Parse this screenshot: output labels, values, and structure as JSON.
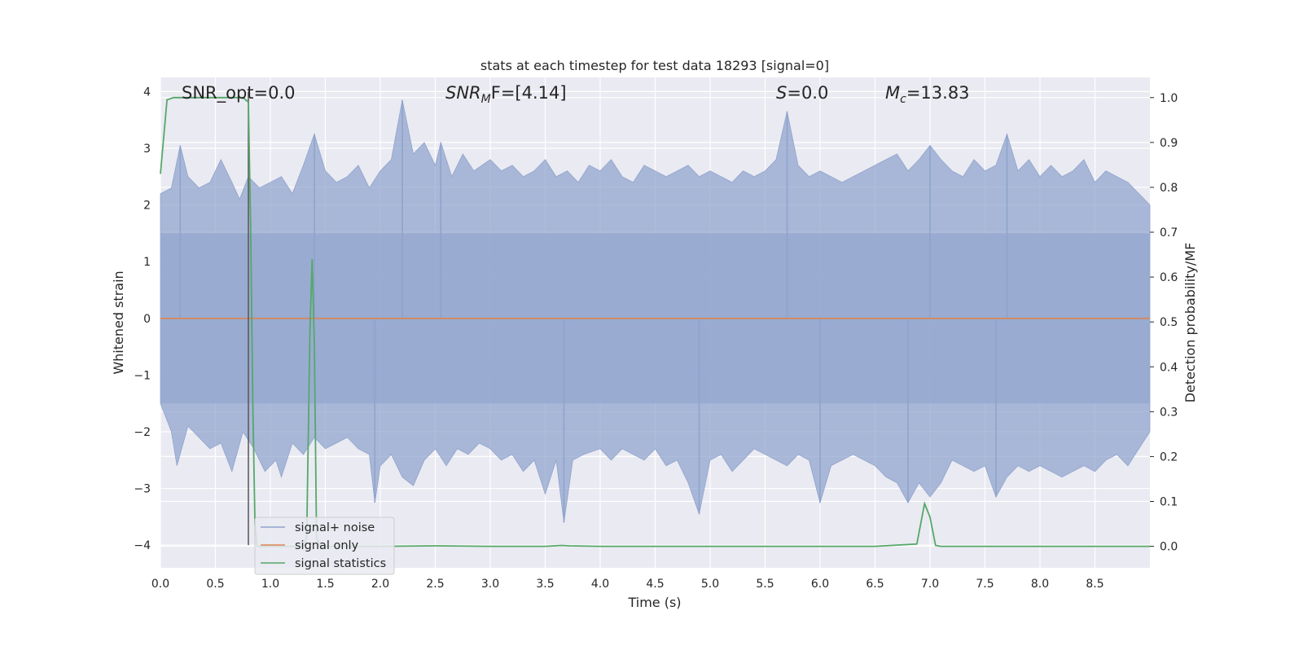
{
  "chart_data": {
    "type": "line",
    "title": "stats at each timestep for test data 18293 [signal=0]",
    "xlabel": "Time (s)",
    "ylabel_left": "Whitened strain",
    "ylabel_right": "Detection probability/MF",
    "xlim": [
      0.0,
      9.0
    ],
    "ylim_left": [
      -4.4,
      4.25
    ],
    "ylim_right": [
      -0.048,
      1.045
    ],
    "x_ticks": [
      "0.0",
      "0.5",
      "1.0",
      "1.5",
      "2.0",
      "2.5",
      "3.0",
      "3.5",
      "4.0",
      "4.5",
      "5.0",
      "5.5",
      "6.0",
      "6.5",
      "7.0",
      "7.5",
      "8.0",
      "8.5"
    ],
    "x_tick_values": [
      0.0,
      0.5,
      1.0,
      1.5,
      2.0,
      2.5,
      3.0,
      3.5,
      4.0,
      4.5,
      5.0,
      5.5,
      6.0,
      6.5,
      7.0,
      7.5,
      8.0,
      8.5
    ],
    "y_ticks_left": [
      "4",
      "3",
      "2",
      "1",
      "0",
      "−1",
      "−2",
      "−3",
      "−4"
    ],
    "y_tick_values_left": [
      4,
      3,
      2,
      1,
      0,
      -1,
      -2,
      -3,
      -4
    ],
    "y_ticks_right": [
      "1.0",
      "0.9",
      "0.8",
      "0.7",
      "0.6",
      "0.5",
      "0.4",
      "0.3",
      "0.2",
      "0.1",
      "0.0"
    ],
    "y_tick_values_right": [
      1.0,
      0.9,
      0.8,
      0.7,
      0.6,
      0.5,
      0.4,
      0.3,
      0.2,
      0.1,
      0.0
    ],
    "grid": true,
    "legend_position": "lower-left",
    "annotations": {
      "snr_opt": "SNR_opt=0.0",
      "snr_mf_base": "SNR",
      "snr_mf_sub": "M",
      "snr_mf_rest": "F=[4.14]",
      "s_italic": "S",
      "s_rest": "=0.0",
      "mc_base": "M",
      "mc_sub": "c",
      "mc_rest": "=13.83"
    },
    "marker_line_x": 0.8,
    "marker_line_color": "#555555",
    "series": [
      {
        "name": "signal+ noise",
        "axis": "left",
        "color": "#8fa3cc",
        "envelope_upper": [
          [
            0.0,
            2.2
          ],
          [
            0.1,
            2.3
          ],
          [
            0.18,
            3.05
          ],
          [
            0.25,
            2.5
          ],
          [
            0.35,
            2.3
          ],
          [
            0.45,
            2.4
          ],
          [
            0.55,
            2.8
          ],
          [
            0.65,
            2.4
          ],
          [
            0.72,
            2.1
          ],
          [
            0.8,
            2.5
          ],
          [
            0.9,
            2.3
          ],
          [
            1.0,
            2.4
          ],
          [
            1.1,
            2.5
          ],
          [
            1.2,
            2.2
          ],
          [
            1.3,
            2.7
          ],
          [
            1.4,
            3.25
          ],
          [
            1.5,
            2.6
          ],
          [
            1.6,
            2.4
          ],
          [
            1.7,
            2.5
          ],
          [
            1.8,
            2.7
          ],
          [
            1.9,
            2.3
          ],
          [
            2.0,
            2.6
          ],
          [
            2.1,
            2.8
          ],
          [
            2.2,
            3.85
          ],
          [
            2.3,
            2.9
          ],
          [
            2.4,
            3.1
          ],
          [
            2.5,
            2.7
          ],
          [
            2.55,
            3.1
          ],
          [
            2.65,
            2.5
          ],
          [
            2.75,
            2.9
          ],
          [
            2.85,
            2.6
          ],
          [
            3.0,
            2.8
          ],
          [
            3.1,
            2.6
          ],
          [
            3.2,
            2.7
          ],
          [
            3.3,
            2.5
          ],
          [
            3.4,
            2.6
          ],
          [
            3.5,
            2.8
          ],
          [
            3.6,
            2.5
          ],
          [
            3.7,
            2.6
          ],
          [
            3.8,
            2.4
          ],
          [
            3.9,
            2.7
          ],
          [
            4.0,
            2.6
          ],
          [
            4.1,
            2.8
          ],
          [
            4.2,
            2.5
          ],
          [
            4.3,
            2.4
          ],
          [
            4.4,
            2.7
          ],
          [
            4.5,
            2.6
          ],
          [
            4.6,
            2.5
          ],
          [
            4.7,
            2.6
          ],
          [
            4.8,
            2.7
          ],
          [
            4.9,
            2.5
          ],
          [
            5.0,
            2.6
          ],
          [
            5.1,
            2.5
          ],
          [
            5.2,
            2.4
          ],
          [
            5.3,
            2.6
          ],
          [
            5.4,
            2.5
          ],
          [
            5.5,
            2.6
          ],
          [
            5.6,
            2.8
          ],
          [
            5.7,
            3.65
          ],
          [
            5.8,
            2.7
          ],
          [
            5.9,
            2.5
          ],
          [
            6.0,
            2.6
          ],
          [
            6.1,
            2.5
          ],
          [
            6.2,
            2.4
          ],
          [
            6.3,
            2.5
          ],
          [
            6.4,
            2.6
          ],
          [
            6.5,
            2.7
          ],
          [
            6.6,
            2.8
          ],
          [
            6.7,
            2.9
          ],
          [
            6.8,
            2.6
          ],
          [
            6.9,
            2.8
          ],
          [
            7.0,
            3.05
          ],
          [
            7.1,
            2.8
          ],
          [
            7.2,
            2.6
          ],
          [
            7.3,
            2.5
          ],
          [
            7.4,
            2.8
          ],
          [
            7.5,
            2.6
          ],
          [
            7.6,
            2.7
          ],
          [
            7.7,
            3.25
          ],
          [
            7.8,
            2.6
          ],
          [
            7.9,
            2.8
          ],
          [
            8.0,
            2.5
          ],
          [
            8.1,
            2.7
          ],
          [
            8.2,
            2.5
          ],
          [
            8.3,
            2.6
          ],
          [
            8.4,
            2.8
          ],
          [
            8.5,
            2.4
          ],
          [
            8.6,
            2.6
          ],
          [
            8.7,
            2.5
          ],
          [
            8.8,
            2.4
          ],
          [
            8.9,
            2.2
          ],
          [
            9.0,
            2.0
          ]
        ],
        "envelope_lower": [
          [
            0.0,
            -1.5
          ],
          [
            0.1,
            -2.0
          ],
          [
            0.15,
            -2.6
          ],
          [
            0.25,
            -1.9
          ],
          [
            0.35,
            -2.1
          ],
          [
            0.45,
            -2.3
          ],
          [
            0.55,
            -2.2
          ],
          [
            0.65,
            -2.7
          ],
          [
            0.75,
            -2.0
          ],
          [
            0.85,
            -2.3
          ],
          [
            0.95,
            -2.7
          ],
          [
            1.05,
            -2.5
          ],
          [
            1.1,
            -2.8
          ],
          [
            1.2,
            -2.2
          ],
          [
            1.3,
            -2.4
          ],
          [
            1.4,
            -2.1
          ],
          [
            1.5,
            -2.3
          ],
          [
            1.6,
            -2.2
          ],
          [
            1.7,
            -2.1
          ],
          [
            1.8,
            -2.3
          ],
          [
            1.9,
            -2.4
          ],
          [
            1.95,
            -3.25
          ],
          [
            2.0,
            -2.6
          ],
          [
            2.1,
            -2.4
          ],
          [
            2.2,
            -2.8
          ],
          [
            2.3,
            -2.95
          ],
          [
            2.4,
            -2.5
          ],
          [
            2.5,
            -2.3
          ],
          [
            2.6,
            -2.6
          ],
          [
            2.7,
            -2.3
          ],
          [
            2.8,
            -2.4
          ],
          [
            2.9,
            -2.2
          ],
          [
            3.0,
            -2.3
          ],
          [
            3.1,
            -2.5
          ],
          [
            3.2,
            -2.4
          ],
          [
            3.3,
            -2.7
          ],
          [
            3.4,
            -2.5
          ],
          [
            3.5,
            -3.1
          ],
          [
            3.6,
            -2.5
          ],
          [
            3.67,
            -3.6
          ],
          [
            3.75,
            -2.5
          ],
          [
            3.85,
            -2.4
          ],
          [
            4.0,
            -2.3
          ],
          [
            4.1,
            -2.5
          ],
          [
            4.2,
            -2.3
          ],
          [
            4.3,
            -2.4
          ],
          [
            4.4,
            -2.5
          ],
          [
            4.5,
            -2.3
          ],
          [
            4.6,
            -2.6
          ],
          [
            4.7,
            -2.5
          ],
          [
            4.8,
            -2.9
          ],
          [
            4.9,
            -3.45
          ],
          [
            5.0,
            -2.5
          ],
          [
            5.1,
            -2.4
          ],
          [
            5.2,
            -2.7
          ],
          [
            5.3,
            -2.5
          ],
          [
            5.4,
            -2.3
          ],
          [
            5.5,
            -2.4
          ],
          [
            5.6,
            -2.5
          ],
          [
            5.7,
            -2.6
          ],
          [
            5.8,
            -2.4
          ],
          [
            5.9,
            -2.5
          ],
          [
            6.0,
            -3.25
          ],
          [
            6.1,
            -2.6
          ],
          [
            6.2,
            -2.5
          ],
          [
            6.3,
            -2.4
          ],
          [
            6.4,
            -2.5
          ],
          [
            6.5,
            -2.6
          ],
          [
            6.6,
            -2.8
          ],
          [
            6.7,
            -2.9
          ],
          [
            6.8,
            -3.25
          ],
          [
            6.9,
            -2.9
          ],
          [
            7.0,
            -3.15
          ],
          [
            7.1,
            -2.9
          ],
          [
            7.2,
            -2.5
          ],
          [
            7.3,
            -2.6
          ],
          [
            7.4,
            -2.7
          ],
          [
            7.5,
            -2.6
          ],
          [
            7.6,
            -3.15
          ],
          [
            7.7,
            -2.8
          ],
          [
            7.8,
            -2.6
          ],
          [
            7.9,
            -2.7
          ],
          [
            8.0,
            -2.6
          ],
          [
            8.1,
            -2.7
          ],
          [
            8.2,
            -2.8
          ],
          [
            8.3,
            -2.7
          ],
          [
            8.4,
            -2.6
          ],
          [
            8.5,
            -2.7
          ],
          [
            8.6,
            -2.5
          ],
          [
            8.7,
            -2.4
          ],
          [
            8.8,
            -2.6
          ],
          [
            8.9,
            -2.3
          ],
          [
            9.0,
            -2.0
          ]
        ],
        "spikes_up": [
          [
            0.18,
            3.05
          ],
          [
            1.4,
            3.25
          ],
          [
            2.2,
            3.85
          ],
          [
            2.55,
            3.1
          ],
          [
            5.7,
            3.65
          ],
          [
            7.7,
            3.25
          ],
          [
            7.0,
            3.05
          ]
        ],
        "spikes_down": [
          [
            1.95,
            -3.25
          ],
          [
            3.67,
            -3.6
          ],
          [
            4.9,
            -3.45
          ],
          [
            6.0,
            -3.25
          ],
          [
            6.8,
            -3.25
          ],
          [
            7.6,
            -3.15
          ]
        ]
      },
      {
        "name": "signal only",
        "axis": "left",
        "color": "#dd8452",
        "x": [
          0.0,
          9.0
        ],
        "y": [
          0.0,
          0.0
        ]
      },
      {
        "name": "signal statistics",
        "axis": "right",
        "color": "#55a868",
        "x": [
          0.0,
          0.06,
          0.12,
          0.2,
          0.3,
          0.4,
          0.5,
          0.6,
          0.7,
          0.75,
          0.8,
          0.82,
          0.84,
          0.86,
          0.88,
          0.9,
          0.95,
          1.0,
          1.1,
          1.2,
          1.3,
          1.33,
          1.36,
          1.38,
          1.4,
          1.42,
          1.45,
          1.5,
          2.0,
          2.5,
          3.0,
          3.5,
          3.65,
          3.72,
          4.0,
          5.0,
          6.0,
          6.5,
          6.88,
          6.95,
          7.0,
          7.05,
          7.1,
          7.5,
          8.0,
          9.0
        ],
        "y": [
          0.83,
          0.995,
          1.0,
          1.0,
          1.0,
          1.0,
          1.0,
          1.0,
          1.0,
          1.0,
          0.99,
          0.72,
          0.32,
          0.05,
          0.0,
          0.0,
          0.0,
          0.0,
          0.0,
          0.0,
          0.0,
          0.02,
          0.48,
          0.64,
          0.45,
          0.02,
          0.0,
          0.0,
          0.0,
          0.001,
          0.0,
          0.0,
          0.002,
          0.001,
          0.0,
          0.0,
          0.0,
          0.0,
          0.005,
          0.095,
          0.065,
          0.002,
          0.0,
          0.0,
          0.0,
          0.0
        ]
      }
    ]
  }
}
